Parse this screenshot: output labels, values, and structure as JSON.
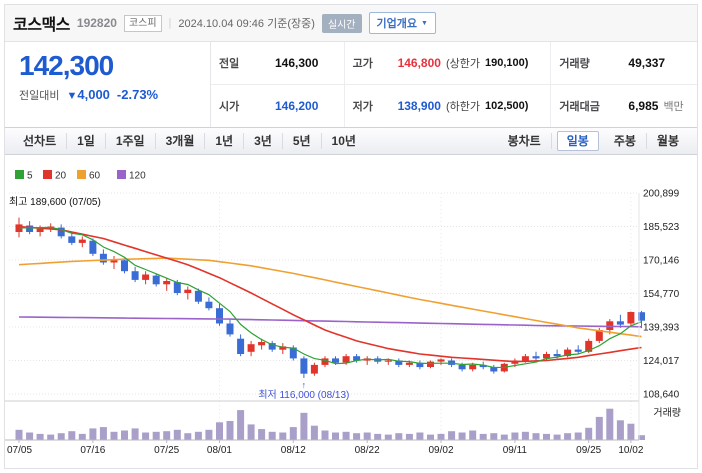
{
  "header": {
    "title": "코스맥스",
    "code": "192820",
    "market_badge": "코스피",
    "separator": "|",
    "datetime": "2024.10.04 09:46 기준(장중)",
    "realtime_badge": "실시간",
    "company_info_button": "기업개요",
    "dropdown_arrow": "▼"
  },
  "quote": {
    "price": "142,300",
    "change_label": "전일대비",
    "change_arrow": "▼",
    "change_value": "4,000",
    "change_pct": "-2.73%",
    "table": {
      "prev_label": "전일",
      "prev_value": "146,300",
      "high_label": "고가",
      "high_value": "146,800",
      "upper_limit_label": "(상한가",
      "upper_limit_value": "190,100)",
      "volume_label": "거래량",
      "volume_value": "49,337",
      "open_label": "시가",
      "open_value": "146,200",
      "low_label": "저가",
      "low_value": "138,900",
      "lower_limit_label": "(하한가",
      "lower_limit_value": "102,500)",
      "amount_label": "거래대금",
      "amount_value": "6,985",
      "amount_unit": "백만"
    }
  },
  "tabs": {
    "period": [
      "선차트",
      "1일",
      "1주일",
      "3개월",
      "1년",
      "3년",
      "5년",
      "10년"
    ],
    "chart_type_label": "봉차트",
    "chart_types": [
      "일봉",
      "주봉",
      "월봉"
    ],
    "active_chart_type": "일봉"
  },
  "chart_data": {
    "type": "candlestick",
    "legend": [
      {
        "label": "5",
        "color": "#2fa135"
      },
      {
        "label": "20",
        "color": "#e1342b"
      },
      {
        "label": "60",
        "color": "#f0a030"
      },
      {
        "label": "120",
        "color": "#9a63c9"
      }
    ],
    "y_ticks": [
      200899,
      185523,
      170146,
      154770,
      139393,
      124017,
      108640
    ],
    "x_ticks": [
      [
        0,
        "07/05"
      ],
      [
        7,
        "07/16"
      ],
      [
        14,
        "07/25"
      ],
      [
        19,
        "08/01"
      ],
      [
        26,
        "08/12"
      ],
      [
        33,
        "08/22"
      ],
      [
        40,
        "09/02"
      ],
      [
        47,
        "09/11"
      ],
      [
        54,
        "09/25"
      ],
      [
        58,
        "10/02"
      ]
    ],
    "v_grid_indices": [
      19,
      40,
      58
    ],
    "annotations": {
      "high": {
        "text": "최고 189,600 (07/05)",
        "index": 0
      },
      "low": {
        "text": "최저 116,000 (08/13)",
        "index": 27,
        "arrow": "↑",
        "color": "#3d51d8"
      }
    },
    "volume_pane_label": "거래량",
    "colors": {
      "up": "#e1342b",
      "down": "#3a6cd6",
      "volume": "#a99fc9",
      "grid": "#e5e5e9"
    },
    "candles": [
      [
        "07/05",
        183000,
        189600,
        180500,
        186500,
        30
      ],
      [
        "07/08",
        186000,
        188000,
        182000,
        183000,
        22
      ],
      [
        "07/09",
        183000,
        186000,
        181000,
        184500,
        18
      ],
      [
        "07/10",
        184500,
        187000,
        183000,
        185500,
        16
      ],
      [
        "07/11",
        185000,
        186500,
        180000,
        181000,
        20
      ],
      [
        "07/12",
        181000,
        183000,
        177000,
        178000,
        26
      ],
      [
        "07/15",
        178000,
        181000,
        176000,
        179500,
        18
      ],
      [
        "07/16",
        179000,
        180000,
        172000,
        173000,
        34
      ],
      [
        "07/17",
        173000,
        175000,
        168000,
        169000,
        38
      ],
      [
        "07/18",
        169000,
        172000,
        166000,
        170500,
        24
      ],
      [
        "07/19",
        170000,
        171000,
        164000,
        165000,
        28
      ],
      [
        "07/22",
        165000,
        167000,
        160000,
        161000,
        34
      ],
      [
        "07/23",
        161000,
        165000,
        159000,
        163500,
        22
      ],
      [
        "07/24",
        163000,
        164000,
        158000,
        159000,
        24
      ],
      [
        "07/25",
        159000,
        162000,
        156000,
        160500,
        26
      ],
      [
        "07/26",
        160000,
        161000,
        154000,
        155000,
        30
      ],
      [
        "07/29",
        155000,
        158000,
        152000,
        156500,
        20
      ],
      [
        "07/30",
        156000,
        157000,
        150000,
        151000,
        24
      ],
      [
        "07/31",
        151000,
        153000,
        147000,
        148000,
        30
      ],
      [
        "08/01",
        148000,
        150000,
        140000,
        141000,
        52
      ],
      [
        "08/02",
        141000,
        143000,
        135000,
        136000,
        56
      ],
      [
        "08/05",
        134000,
        136000,
        126000,
        127000,
        88
      ],
      [
        "08/06",
        128000,
        133000,
        126000,
        131500,
        46
      ],
      [
        "08/07",
        131000,
        134000,
        129000,
        132500,
        32
      ],
      [
        "08/08",
        132000,
        133000,
        128000,
        129000,
        24
      ],
      [
        "08/09",
        129000,
        132000,
        127000,
        130500,
        22
      ],
      [
        "08/12",
        130000,
        131000,
        124000,
        125000,
        38
      ],
      [
        "08/13",
        125000,
        126000,
        116000,
        118000,
        80
      ],
      [
        "08/14",
        118000,
        123000,
        117000,
        122000,
        42
      ],
      [
        "08/16",
        122000,
        126000,
        121000,
        125000,
        28
      ],
      [
        "08/19",
        125000,
        126000,
        122000,
        123000,
        22
      ],
      [
        "08/20",
        123000,
        127000,
        122000,
        126000,
        24
      ],
      [
        "08/21",
        126000,
        127000,
        123000,
        124000,
        20
      ],
      [
        "08/22",
        124000,
        126000,
        122000,
        125000,
        22
      ],
      [
        "08/23",
        125000,
        126000,
        122500,
        123500,
        18
      ],
      [
        "08/26",
        123500,
        125000,
        122000,
        124000,
        16
      ],
      [
        "08/27",
        124000,
        125000,
        121000,
        122000,
        20
      ],
      [
        "08/28",
        122000,
        124000,
        121000,
        123000,
        18
      ],
      [
        "08/29",
        123000,
        124000,
        120000,
        121000,
        22
      ],
      [
        "08/30",
        121000,
        124000,
        120500,
        123500,
        16
      ],
      [
        "09/02",
        123500,
        125000,
        122000,
        124500,
        18
      ],
      [
        "09/03",
        124000,
        125000,
        121000,
        122000,
        26
      ],
      [
        "09/04",
        122000,
        123000,
        119000,
        120000,
        22
      ],
      [
        "09/05",
        120000,
        123000,
        119000,
        122000,
        28
      ],
      [
        "09/06",
        122000,
        123500,
        120000,
        121000,
        18
      ],
      [
        "09/09",
        121000,
        122000,
        118000,
        119000,
        20
      ],
      [
        "09/10",
        119000,
        123000,
        118500,
        122500,
        16
      ],
      [
        "09/11",
        122500,
        125000,
        121000,
        124000,
        22
      ],
      [
        "09/12",
        124000,
        127000,
        123000,
        126000,
        24
      ],
      [
        "09/13",
        126000,
        128000,
        124000,
        125000,
        20
      ],
      [
        "09/19",
        125000,
        128000,
        124000,
        127000,
        18
      ],
      [
        "09/20",
        127000,
        129000,
        125000,
        126000,
        16
      ],
      [
        "09/23",
        126000,
        130000,
        125500,
        129000,
        20
      ],
      [
        "09/24",
        129000,
        131000,
        127000,
        128000,
        22
      ],
      [
        "09/25",
        128000,
        134000,
        127500,
        133000,
        36
      ],
      [
        "09/26",
        133000,
        139000,
        132000,
        138000,
        68
      ],
      [
        "09/27",
        138000,
        143000,
        136000,
        142000,
        92
      ],
      [
        "09/30",
        142000,
        145000,
        139000,
        140500,
        58
      ],
      [
        "10/02",
        141000,
        146500,
        139500,
        146300,
        48
      ],
      [
        "10/04",
        146200,
        146800,
        138900,
        142300,
        14
      ]
    ],
    "ma": {
      "ma5": {
        "color": "#2fa135",
        "seed_closes": [
          183000,
          184000,
          185000,
          186000
        ]
      },
      "ma20": {
        "color": "#e1342b",
        "keyframes": [
          [
            0,
            185500
          ],
          [
            4,
            184000
          ],
          [
            8,
            180000
          ],
          [
            12,
            174000
          ],
          [
            16,
            168000
          ],
          [
            19,
            162000
          ],
          [
            22,
            155000
          ],
          [
            26,
            145000
          ],
          [
            29,
            138000
          ],
          [
            32,
            133000
          ],
          [
            35,
            129500
          ],
          [
            38,
            127000
          ],
          [
            41,
            125500
          ],
          [
            44,
            124500
          ],
          [
            47,
            123500
          ],
          [
            50,
            124000
          ],
          [
            53,
            125500
          ],
          [
            55,
            127000
          ],
          [
            57,
            128500
          ],
          [
            59,
            130000
          ]
        ]
      },
      "ma60": {
        "color": "#f0a030",
        "keyframes": [
          [
            0,
            168000
          ],
          [
            5,
            169500
          ],
          [
            10,
            170500
          ],
          [
            14,
            171000
          ],
          [
            18,
            170000
          ],
          [
            22,
            167500
          ],
          [
            26,
            164000
          ],
          [
            30,
            160000
          ],
          [
            34,
            156000
          ],
          [
            38,
            152000
          ],
          [
            42,
            148500
          ],
          [
            46,
            145000
          ],
          [
            50,
            141500
          ],
          [
            53,
            139000
          ],
          [
            56,
            137000
          ],
          [
            59,
            135000
          ]
        ]
      },
      "ma120": {
        "color": "#9a63c9",
        "keyframes": [
          [
            0,
            144000
          ],
          [
            10,
            143500
          ],
          [
            20,
            143000
          ],
          [
            30,
            142000
          ],
          [
            40,
            141000
          ],
          [
            50,
            140000
          ],
          [
            59,
            139500
          ]
        ]
      }
    }
  }
}
